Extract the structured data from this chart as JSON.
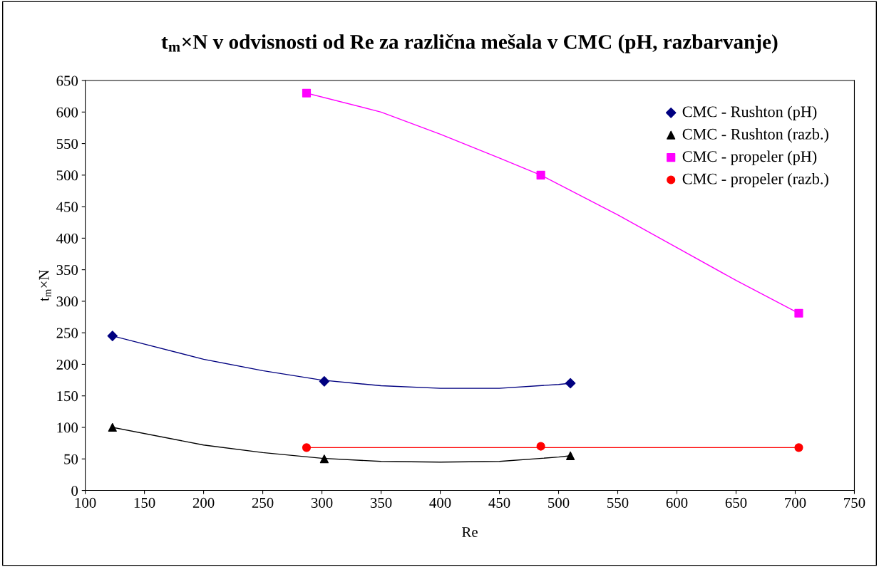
{
  "chart_data": {
    "type": "scatter",
    "title": "t$_{m}$×N v odvisnosti od Re za različna mešala v CMC (pH, razbarvanje)",
    "xlabel": "Re",
    "ylabel": "t$_{m}$×N",
    "xlim": [
      100,
      750
    ],
    "xticks": [
      100,
      150,
      200,
      250,
      300,
      350,
      400,
      450,
      500,
      550,
      600,
      650,
      700,
      750
    ],
    "ylim": [
      0,
      650
    ],
    "yticks": [
      0,
      50,
      100,
      150,
      200,
      250,
      300,
      350,
      400,
      450,
      500,
      550,
      600,
      650
    ],
    "grid": false,
    "legend": "top right",
    "series": [
      {
        "type": "line",
        "color": "#000080",
        "marker": "none",
        "x": [
          123,
          200,
          250,
          300,
          350,
          400,
          450,
          500,
          510
        ],
        "values": [
          245,
          208,
          190,
          175,
          166,
          162,
          162,
          168,
          170
        ]
      },
      {
        "type": "line",
        "color": "#000000",
        "marker": "none",
        "x": [
          123,
          200,
          250,
          300,
          350,
          400,
          450,
          500,
          510
        ],
        "values": [
          100,
          72,
          60,
          51,
          46,
          45,
          46,
          53,
          55
        ]
      },
      {
        "type": "line",
        "color": "#ff00ff",
        "marker": "none",
        "x": [
          287,
          350,
          400,
          450,
          485,
          550,
          600,
          650,
          703
        ],
        "values": [
          630,
          600,
          565,
          527,
          500,
          437,
          385,
          333,
          281
        ]
      },
      {
        "type": "line",
        "color": "#ff0000",
        "marker": "none",
        "x": [
          287,
          703
        ],
        "values": [
          68,
          68
        ]
      },
      {
        "name": "CMC - Rushton (pH)",
        "color": "#000080",
        "marker": "diamond",
        "x": [
          123,
          302,
          510
        ],
        "values": [
          245,
          173,
          170
        ]
      },
      {
        "name": "CMC - Rushton (razb.)",
        "color": "#000000",
        "marker": "triangle",
        "x": [
          123,
          302,
          510
        ],
        "values": [
          100,
          50,
          55
        ]
      },
      {
        "name": "CMC - propeler (pH)",
        "color": "#ff00ff",
        "marker": "square",
        "x": [
          287,
          485,
          703
        ],
        "values": [
          630,
          500,
          281
        ]
      },
      {
        "name": "CMC - propeler (razb.)",
        "color": "#ff0000",
        "marker": "circle",
        "x": [
          287,
          485,
          703
        ],
        "values": [
          68,
          70,
          68
        ]
      }
    ]
  }
}
